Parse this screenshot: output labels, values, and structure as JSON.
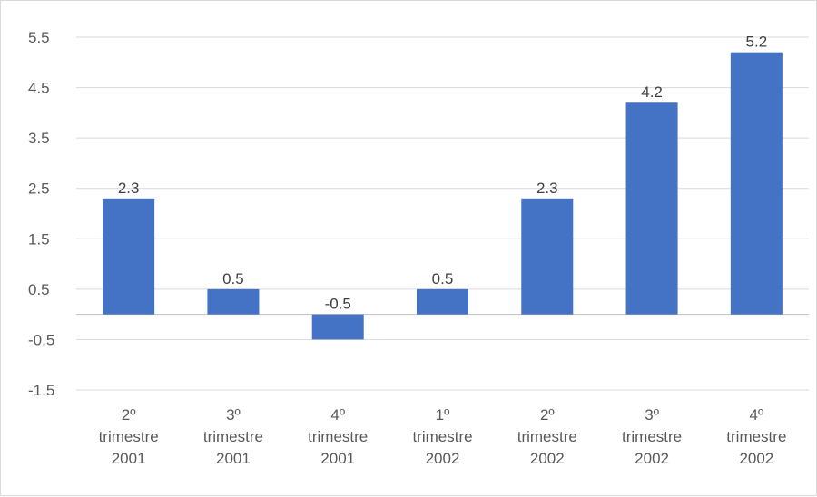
{
  "chart_data": {
    "type": "bar",
    "title": "",
    "xlabel": "",
    "ylabel": "",
    "categories": [
      [
        "2º",
        "trimestre",
        "2001"
      ],
      [
        "3º",
        "trimestre",
        "2001"
      ],
      [
        "4º",
        "trimestre",
        "2001"
      ],
      [
        "1º",
        "trimestre",
        "2002"
      ],
      [
        "2º",
        "trimestre",
        "2002"
      ],
      [
        "3º",
        "trimestre",
        "2002"
      ],
      [
        "4º",
        "trimestre",
        "2002"
      ]
    ],
    "values": [
      2.3,
      0.5,
      -0.5,
      0.5,
      2.3,
      4.2,
      5.2
    ],
    "data_labels": [
      "2.3",
      "0.5",
      "-0.5",
      "0.5",
      "2.3",
      "4.2",
      "5.2"
    ],
    "ylim": [
      -1.5,
      5.5
    ],
    "yticks": [
      5.5,
      4.5,
      3.5,
      2.5,
      1.5,
      0.5,
      -0.5,
      -1.5
    ],
    "ytick_labels": [
      "5.5",
      "4.5",
      "3.5",
      "2.5",
      "1.5",
      "0.5",
      "-0.5",
      "-1.5"
    ],
    "grid": true,
    "legend": "none",
    "colors": {
      "bar": "#4472C4",
      "grid": "#d9d9d9",
      "axis": "#bfbfbf"
    }
  }
}
